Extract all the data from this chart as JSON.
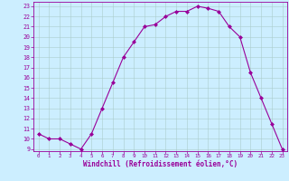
{
  "x": [
    0,
    1,
    2,
    3,
    4,
    5,
    6,
    7,
    8,
    9,
    10,
    11,
    12,
    13,
    14,
    15,
    16,
    17,
    18,
    19,
    20,
    21,
    22,
    23
  ],
  "y": [
    10.5,
    10.0,
    10.0,
    9.5,
    9.0,
    10.5,
    13.0,
    15.5,
    18.0,
    19.5,
    21.0,
    21.2,
    22.0,
    22.5,
    22.5,
    23.0,
    22.8,
    22.5,
    21.0,
    20.0,
    16.5,
    14.0,
    11.5,
    9.0
  ],
  "line_color": "#990099",
  "marker": "D",
  "marker_size": 2.0,
  "background_color": "#cceeff",
  "grid_color": "#aacccc",
  "xlabel": "Windchill (Refroidissement éolien,°C)",
  "xlabel_color": "#990099",
  "tick_color": "#990099",
  "ylim": [
    9,
    23
  ],
  "xlim": [
    0,
    23
  ],
  "yticks": [
    9,
    10,
    11,
    12,
    13,
    14,
    15,
    16,
    17,
    18,
    19,
    20,
    21,
    22,
    23
  ],
  "xticks": [
    0,
    1,
    2,
    3,
    4,
    5,
    6,
    7,
    8,
    9,
    10,
    11,
    12,
    13,
    14,
    15,
    16,
    17,
    18,
    19,
    20,
    21,
    22,
    23
  ]
}
